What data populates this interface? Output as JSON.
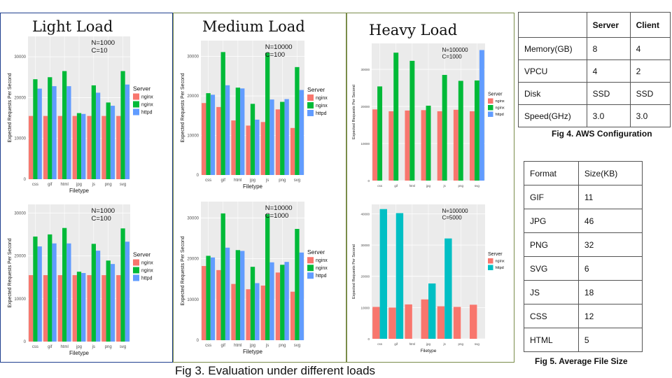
{
  "fig3_caption": "Fig 3. Evaluation under different loads",
  "fig4_caption": "Fig 4. AWS Configuration",
  "fig5_caption": "Fig 5. Average File Size",
  "panels": {
    "light": {
      "title": "Light Load"
    },
    "medium": {
      "title": "Medium Load"
    },
    "heavy": {
      "title": "Heavy Load"
    }
  },
  "aws_table": {
    "header": [
      "",
      "Server",
      "Client"
    ],
    "rows": [
      [
        "Memory(GB)",
        "8",
        "4"
      ],
      [
        "VPCU",
        "4",
        "2"
      ],
      [
        "Disk",
        "SSD",
        "SSD"
      ],
      [
        "Speed(GHz)",
        "3.0",
        "3.0"
      ]
    ]
  },
  "size_table": {
    "header": [
      "Format",
      "Size(KB)"
    ],
    "rows": [
      [
        "GIF",
        "11"
      ],
      [
        "JPG",
        "46"
      ],
      [
        "PNG",
        "32"
      ],
      [
        "SVG",
        "6"
      ],
      [
        "JS",
        "18"
      ],
      [
        "CSS",
        "12"
      ],
      [
        "HTML",
        "5"
      ]
    ]
  },
  "colors": {
    "nginx_red": "#f8766d",
    "nginx_green": "#00ba38",
    "httpd_blue": "#619cff",
    "teal": "#00bfc4"
  },
  "chart_data": [
    {
      "id": "light-top",
      "type": "bar",
      "annotation": [
        "N=1000",
        "C=10"
      ],
      "categories": [
        "css",
        "gif",
        "html",
        "jpg",
        "js",
        "png",
        "svg"
      ],
      "xlabel": "Filetype",
      "ylabel": "Expected Requests Per Second",
      "ylim": [
        0,
        35000
      ],
      "yticks": [
        0,
        10000,
        20000,
        30000
      ],
      "legend_title": "Server",
      "legend_position": "right",
      "series": [
        {
          "name": "nginx",
          "color": "#f8766d",
          "values": [
            15500,
            15500,
            15500,
            15500,
            15500,
            15500,
            15500
          ]
        },
        {
          "name": "nginx",
          "color": "#00ba38",
          "values": [
            24500,
            25000,
            26500,
            16200,
            23000,
            18800,
            26500
          ]
        },
        {
          "name": "httpd",
          "color": "#619cff",
          "values": [
            22200,
            22800,
            22800,
            16000,
            21200,
            18000,
            23200
          ]
        }
      ]
    },
    {
      "id": "light-bottom",
      "type": "bar",
      "annotation": [
        "N=1000",
        "C=100"
      ],
      "categories": [
        "css",
        "gif",
        "html",
        "jpg",
        "js",
        "png",
        "svg"
      ],
      "xlabel": "Filetype",
      "ylabel": "Expected Requests Per Second",
      "ylim": [
        0,
        32000
      ],
      "yticks": [
        0,
        10000,
        20000,
        30000
      ],
      "legend_title": "Server",
      "legend_position": "right",
      "series": [
        {
          "name": "nginx",
          "color": "#f8766d",
          "values": [
            15500,
            15500,
            15500,
            15500,
            15500,
            15500,
            15500
          ]
        },
        {
          "name": "nginx",
          "color": "#00ba38",
          "values": [
            24500,
            25000,
            26500,
            16300,
            22800,
            18900,
            26400
          ]
        },
        {
          "name": "httpd",
          "color": "#619cff",
          "values": [
            22200,
            22900,
            22900,
            16000,
            21200,
            18100,
            23300
          ]
        }
      ]
    },
    {
      "id": "medium-top",
      "type": "bar",
      "annotation": [
        "N=10000",
        "C=100"
      ],
      "categories": [
        "css",
        "gif",
        "html",
        "jpg",
        "js",
        "png",
        "svg"
      ],
      "xlabel": "Filetype",
      "ylabel": "Expected Requests Per Second",
      "ylim": [
        0,
        34000
      ],
      "yticks": [
        0,
        10000,
        20000,
        30000
      ],
      "legend_title": "Server",
      "legend_position": "right",
      "series": [
        {
          "name": "nginx",
          "color": "#f8766d",
          "values": [
            18200,
            17200,
            13800,
            12500,
            13400,
            16600,
            11900
          ]
        },
        {
          "name": "nginx",
          "color": "#00ba38",
          "values": [
            20700,
            31100,
            22100,
            18000,
            30900,
            18500,
            27300
          ]
        },
        {
          "name": "httpd",
          "color": "#619cff",
          "values": [
            20300,
            22700,
            21900,
            14000,
            19100,
            19200,
            21500
          ]
        }
      ]
    },
    {
      "id": "medium-bottom",
      "type": "bar",
      "annotation": [
        "N=10000",
        "C=1000"
      ],
      "categories": [
        "css",
        "gif",
        "html",
        "jpg",
        "js",
        "png",
        "svg"
      ],
      "xlabel": "Filetype",
      "ylabel": "Expected Requests Per Second",
      "ylim": [
        0,
        34000
      ],
      "yticks": [
        0,
        10000,
        20000,
        30000
      ],
      "legend_title": "Server",
      "legend_position": "right",
      "series": [
        {
          "name": "nginx",
          "color": "#f8766d",
          "values": [
            18200,
            17200,
            13800,
            12500,
            13400,
            16600,
            11900
          ]
        },
        {
          "name": "nginx",
          "color": "#00ba38",
          "values": [
            20700,
            31100,
            22100,
            18000,
            30900,
            18500,
            27300
          ]
        },
        {
          "name": "httpd",
          "color": "#619cff",
          "values": [
            20300,
            22700,
            21900,
            14000,
            19100,
            19200,
            21500
          ]
        }
      ]
    },
    {
      "id": "heavy-top",
      "type": "bar",
      "annotation": [
        "N=100000",
        "C=1000"
      ],
      "categories": [
        "css",
        "gif",
        "html",
        "jpg",
        "js",
        "png",
        "svg"
      ],
      "xlabel": "",
      "ylabel": "Expected Requests Per Second",
      "ylim": [
        0,
        37000
      ],
      "yticks": [
        0,
        10000,
        20000,
        30000
      ],
      "legend_title": "Server",
      "legend_position": "right",
      "series": [
        {
          "name": "nginx",
          "color": "#f8766d",
          "values": [
            19200,
            18700,
            18900,
            19000,
            18700,
            19100,
            18700
          ]
        },
        {
          "name": "nginx",
          "color": "#00ba38",
          "values": [
            25400,
            34500,
            32300,
            20200,
            28500,
            26900,
            27000
          ]
        },
        {
          "name": "httpd",
          "color": "#619cff",
          "values": [
            null,
            null,
            null,
            null,
            null,
            null,
            35200
          ]
        }
      ]
    },
    {
      "id": "heavy-bottom",
      "type": "bar",
      "annotation": [
        "N=100000",
        "C=5000"
      ],
      "categories": [
        "css",
        "gif",
        "html",
        "jpg",
        "js",
        "png",
        "svg"
      ],
      "xlabel": "Filetype",
      "ylabel": "Expected Requests Per Second",
      "ylim": [
        0,
        43000
      ],
      "yticks": [
        0,
        10000,
        20000,
        30000,
        40000
      ],
      "legend_title": "Server",
      "legend_position": "right",
      "series": [
        {
          "name": "nginx",
          "color": "#f8766d",
          "values": [
            10200,
            10000,
            11000,
            12600,
            10400,
            10200,
            10900
          ]
        },
        {
          "name": "httpd",
          "color": "#00bfc4",
          "values": [
            41500,
            40200,
            null,
            17700,
            32100,
            null,
            null
          ]
        }
      ]
    }
  ]
}
